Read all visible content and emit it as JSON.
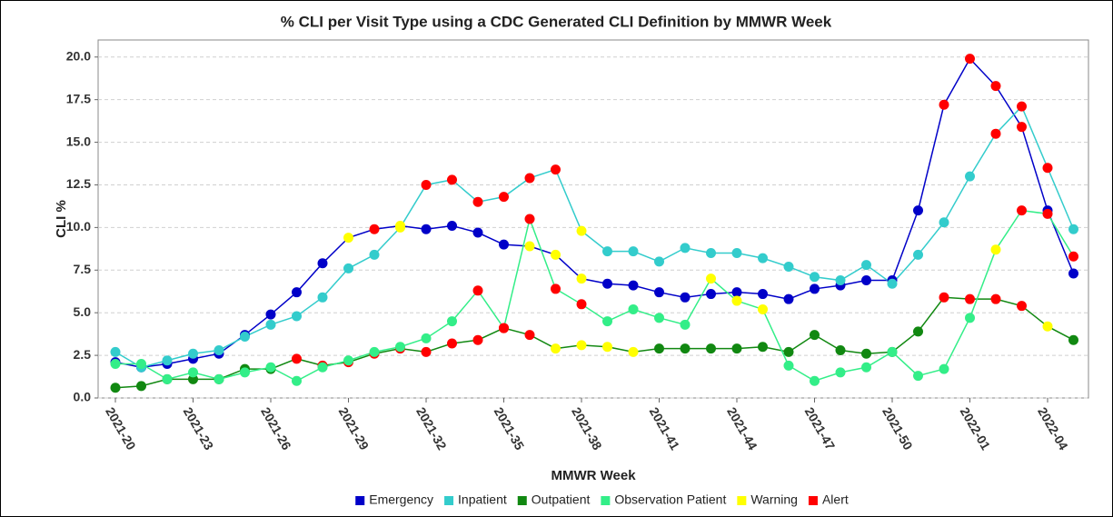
{
  "chart_data": {
    "type": "line",
    "title": "% CLI per Visit Type using a CDC Generated CLI Definition by MMWR Week",
    "x_label": "MMWR Week",
    "y_label": "CLI %",
    "categories": [
      "2021-20",
      null,
      null,
      "2021-23",
      null,
      null,
      "2021-26",
      null,
      null,
      "2021-29",
      null,
      null,
      "2021-32",
      null,
      null,
      "2021-35",
      null,
      null,
      "2021-38",
      null,
      null,
      "2021-41",
      null,
      null,
      "2021-44",
      null,
      null,
      "2021-47",
      null,
      null,
      "2021-50",
      null,
      null,
      "2022-01",
      null,
      null,
      "2022-04",
      null
    ],
    "ylim": [
      0,
      21
    ],
    "yticks": [
      {
        "value": 0,
        "label": "0.0"
      },
      {
        "value": 2.5,
        "label": "2.5"
      },
      {
        "value": 5,
        "label": "5.0"
      },
      {
        "value": 7.5,
        "label": "7.5"
      },
      {
        "value": 10,
        "label": "10.0"
      },
      {
        "value": 12.5,
        "label": "12.5"
      },
      {
        "value": 15,
        "label": "15.0"
      },
      {
        "value": 17.5,
        "label": "17.5"
      },
      {
        "value": 20,
        "label": "20.0"
      }
    ],
    "grid": true,
    "legend": "bottom",
    "series": [
      {
        "name": "Emergency",
        "color": "#0000c8",
        "values": [
          2.1,
          1.8,
          2.0,
          2.3,
          2.6,
          3.7,
          4.9,
          6.2,
          7.9,
          9.4,
          9.9,
          10.1,
          9.9,
          10.1,
          9.7,
          9.0,
          8.9,
          8.4,
          7.0,
          6.7,
          6.6,
          6.2,
          5.9,
          6.1,
          6.2,
          6.1,
          5.8,
          6.4,
          6.6,
          6.9,
          6.9,
          11.0,
          17.2,
          19.9,
          18.3,
          15.9,
          11.0,
          7.3
        ],
        "marker_colors": [
          "#0000c8",
          "#0000c8",
          "#0000c8",
          "#0000c8",
          "#0000c8",
          "#0000c8",
          "#0000c8",
          "#0000c8",
          "#0000c8",
          "#ffff00",
          "#ff0000",
          "#ffff00",
          "#0000c8",
          "#0000c8",
          "#0000c8",
          "#0000c8",
          "#ffff00",
          "#ffff00",
          "#ffff00",
          "#0000c8",
          "#0000c8",
          "#0000c8",
          "#0000c8",
          "#0000c8",
          "#0000c8",
          "#0000c8",
          "#0000c8",
          "#0000c8",
          "#0000c8",
          "#0000c8",
          "#0000c8",
          "#0000c8",
          "#ff0000",
          "#ff0000",
          "#ff0000",
          "#ff0000",
          "#0000c8",
          "#0000c8"
        ]
      },
      {
        "name": "Inpatient",
        "color": "#33cccc",
        "values": [
          2.7,
          1.8,
          2.2,
          2.6,
          2.8,
          3.6,
          4.3,
          4.8,
          5.9,
          7.6,
          8.4,
          10.0,
          12.5,
          12.8,
          11.5,
          11.8,
          12.9,
          13.4,
          9.8,
          8.6,
          8.6,
          8.0,
          8.8,
          8.5,
          8.5,
          8.2,
          7.7,
          7.1,
          6.9,
          7.8,
          6.7,
          8.4,
          10.3,
          13.0,
          15.5,
          17.1,
          13.5,
          9.9
        ],
        "marker_colors": [
          "#33cccc",
          "#33cccc",
          "#33cccc",
          "#33cccc",
          "#33cccc",
          "#33cccc",
          "#33cccc",
          "#33cccc",
          "#33cccc",
          "#33cccc",
          "#33cccc",
          "#ffff00",
          "#ff0000",
          "#ff0000",
          "#ff0000",
          "#ff0000",
          "#ff0000",
          "#ff0000",
          "#ffff00",
          "#33cccc",
          "#33cccc",
          "#33cccc",
          "#33cccc",
          "#33cccc",
          "#33cccc",
          "#33cccc",
          "#33cccc",
          "#33cccc",
          "#33cccc",
          "#33cccc",
          "#33cccc",
          "#33cccc",
          "#33cccc",
          "#33cccc",
          "#ff0000",
          "#ff0000",
          "#ff0000",
          "#33cccc"
        ]
      },
      {
        "name": "Outpatient",
        "color": "#118811",
        "values": [
          0.6,
          0.7,
          1.1,
          1.1,
          1.1,
          1.7,
          1.7,
          2.3,
          1.9,
          2.1,
          2.6,
          2.9,
          2.7,
          3.2,
          3.4,
          4.1,
          3.7,
          2.9,
          3.1,
          3.0,
          2.7,
          2.9,
          2.9,
          2.9,
          2.9,
          3.0,
          2.7,
          3.7,
          2.8,
          2.6,
          2.7,
          3.9,
          5.9,
          5.8,
          5.8,
          5.4,
          4.2,
          3.4
        ],
        "marker_colors": [
          "#118811",
          "#118811",
          "#118811",
          "#118811",
          "#118811",
          "#118811",
          "#118811",
          "#ff0000",
          "#ff0000",
          "#ff0000",
          "#ff0000",
          "#ff0000",
          "#ff0000",
          "#ff0000",
          "#ff0000",
          "#ff0000",
          "#ff0000",
          "#ffff00",
          "#ffff00",
          "#ffff00",
          "#ffff00",
          "#118811",
          "#118811",
          "#118811",
          "#118811",
          "#118811",
          "#118811",
          "#118811",
          "#118811",
          "#118811",
          "#118811",
          "#118811",
          "#ff0000",
          "#ff0000",
          "#ff0000",
          "#ff0000",
          "#ffff00",
          "#118811"
        ]
      },
      {
        "name": "Observation Patient",
        "color": "#33ee88",
        "values": [
          2.0,
          2.0,
          1.1,
          1.5,
          1.1,
          1.5,
          1.8,
          1.0,
          1.8,
          2.2,
          2.7,
          3.0,
          3.5,
          4.5,
          6.3,
          4.1,
          10.5,
          6.4,
          5.5,
          4.5,
          5.2,
          4.7,
          4.3,
          7.0,
          5.7,
          5.2,
          1.9,
          1.0,
          1.5,
          1.8,
          2.7,
          1.3,
          1.7,
          4.7,
          8.7,
          11.0,
          10.8,
          8.3
        ],
        "marker_colors": [
          "#33ee88",
          "#33ee88",
          "#33ee88",
          "#33ee88",
          "#33ee88",
          "#33ee88",
          "#33ee88",
          "#33ee88",
          "#33ee88",
          "#33ee88",
          "#33ee88",
          "#33ee88",
          "#33ee88",
          "#33ee88",
          "#ff0000",
          "#ff0000",
          "#ff0000",
          "#ff0000",
          "#ff0000",
          "#33ee88",
          "#33ee88",
          "#33ee88",
          "#33ee88",
          "#ffff00",
          "#ffff00",
          "#ffff00",
          "#33ee88",
          "#33ee88",
          "#33ee88",
          "#33ee88",
          "#33ee88",
          "#33ee88",
          "#33ee88",
          "#33ee88",
          "#ffff00",
          "#ff0000",
          "#ff0000",
          "#ff0000"
        ]
      }
    ],
    "flags": [
      {
        "name": "Warning",
        "color": "#ffff00"
      },
      {
        "name": "Alert",
        "color": "#ff0000"
      }
    ]
  }
}
